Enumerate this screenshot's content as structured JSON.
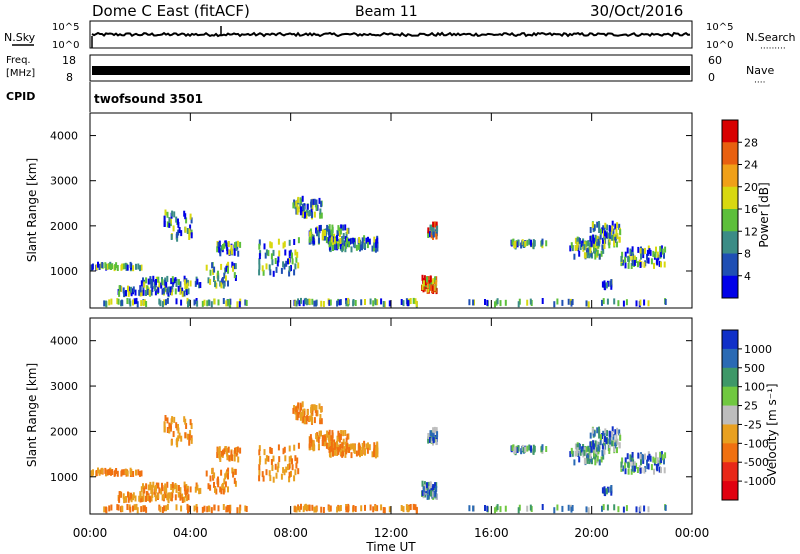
{
  "header": {
    "site": "Dome C East (fitACF)",
    "beam": "Beam 11",
    "date": "30/Oct/2016"
  },
  "chart_data": [
    {
      "type": "line",
      "panel": "nsky-nsearch",
      "left_label": "N.Sky",
      "left_ticks": [
        "10^5",
        "10^0"
      ],
      "right_label": "N.Search",
      "right_ticks": [
        "10^5",
        "10^0"
      ],
      "right_marker": "·········"
    },
    {
      "type": "line",
      "panel": "freq-nave",
      "left_label": "Freq.",
      "left_unit": "[MHz]",
      "left_ticks": [
        "18",
        "8"
      ],
      "ylim": [
        8,
        18
      ],
      "right_label": "Nave",
      "right_ticks": [
        "60",
        "0"
      ],
      "right_marker": "····"
    },
    {
      "type": "table",
      "panel": "cpid",
      "label": "CPID",
      "value": "twofsound 3501"
    },
    {
      "type": "heatmap",
      "panel": "power",
      "ylabel": "Slant Range [km]",
      "yticks": [
        "1000",
        "2000",
        "3000",
        "4000"
      ],
      "ylim": [
        180,
        4500
      ],
      "colorbar": {
        "label": "Power [dB]",
        "ticks": [
          "4",
          "8",
          "12",
          "16",
          "20",
          "24",
          "28"
        ],
        "colors": [
          "#0000e8",
          "#1f4fb4",
          "#3b8c86",
          "#5cbf3a",
          "#d8d810",
          "#f0a018",
          "#e86010",
          "#d80000"
        ]
      }
    },
    {
      "type": "heatmap",
      "panel": "velocity",
      "ylabel": "Slant Range [km]",
      "yticks": [
        "1000",
        "2000",
        "3000",
        "4000"
      ],
      "ylim": [
        180,
        4500
      ],
      "xlabel": "Time UT",
      "xticks": [
        "00:00",
        "04:00",
        "08:00",
        "12:00",
        "16:00",
        "20:00",
        "00:00"
      ],
      "colorbar": {
        "label": "Velocity [m s⁻¹]",
        "ticks": [
          "1000",
          "500",
          "100",
          "25",
          "-25",
          "-100",
          "-500",
          "-1000"
        ],
        "colors": [
          "#1030c8",
          "#2a6ab4",
          "#3e9868",
          "#70c840",
          "#bdbdbd",
          "#e8a020",
          "#f07010",
          "#e82818",
          "#e00010"
        ]
      }
    }
  ]
}
